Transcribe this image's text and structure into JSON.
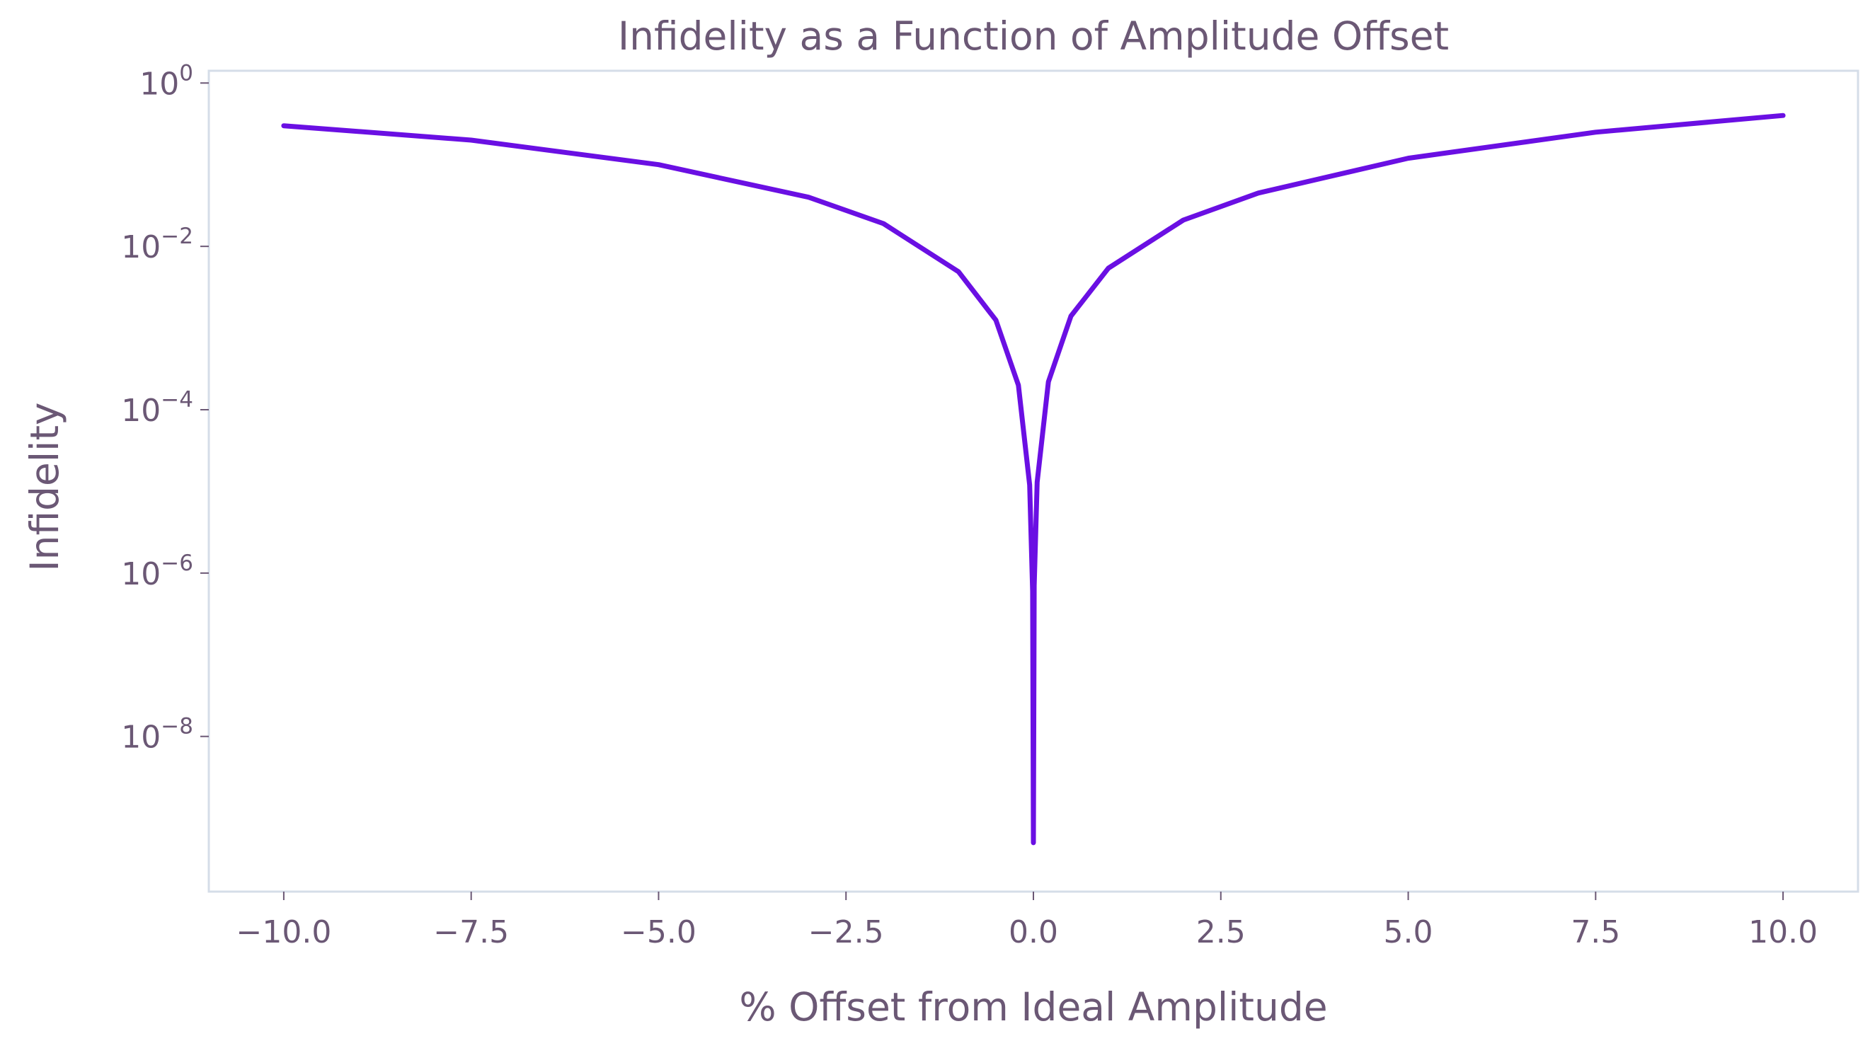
{
  "chart_data": {
    "type": "line",
    "title": "Infidelity as a Function of Amplitude Offset",
    "xlabel": "% Offset from Ideal Amplitude",
    "ylabel": "Infidelity",
    "xlim": [
      -11,
      11
    ],
    "ylim_log10": [
      -9.9,
      0.15
    ],
    "yscale": "log",
    "grid": false,
    "legend": "none",
    "x_ticks": [
      -10.0,
      -7.5,
      -5.0,
      -2.5,
      0.0,
      2.5,
      5.0,
      7.5,
      10.0
    ],
    "x_tick_labels": [
      "−10.0",
      "−7.5",
      "−5.0",
      "−2.5",
      "0.0",
      "2.5",
      "5.0",
      "7.5",
      "10.0"
    ],
    "y_ticks_exp": [
      0,
      -2,
      -4,
      -6,
      -8
    ],
    "y_tick_labels": [
      {
        "base": "10",
        "exp": "0"
      },
      {
        "base": "10",
        "exp": "−2"
      },
      {
        "base": "10",
        "exp": "−4"
      },
      {
        "base": "10",
        "exp": "−6"
      },
      {
        "base": "10",
        "exp": "−8"
      }
    ],
    "series": [
      {
        "color": "#6a0fe3",
        "x": [
          -10.0,
          -7.5,
          -5.0,
          -3.0,
          -2.0,
          -1.0,
          -0.5,
          -0.2,
          -0.05,
          -0.01,
          0.0,
          0.01,
          0.05,
          0.2,
          0.5,
          1.0,
          2.0,
          3.0,
          5.0,
          7.5,
          10.0
        ],
        "y": [
          0.3,
          0.2,
          0.1,
          0.04,
          0.019,
          0.0049,
          0.00125,
          0.0002,
          1.2e-05,
          6e-07,
          5e-10,
          7e-07,
          1.3e-05,
          0.00022,
          0.0014,
          0.0054,
          0.021,
          0.045,
          0.12,
          0.25,
          0.4
        ]
      }
    ],
    "style": {
      "axis_color": "#d5dde8",
      "text_color": "#6b5875"
    }
  }
}
